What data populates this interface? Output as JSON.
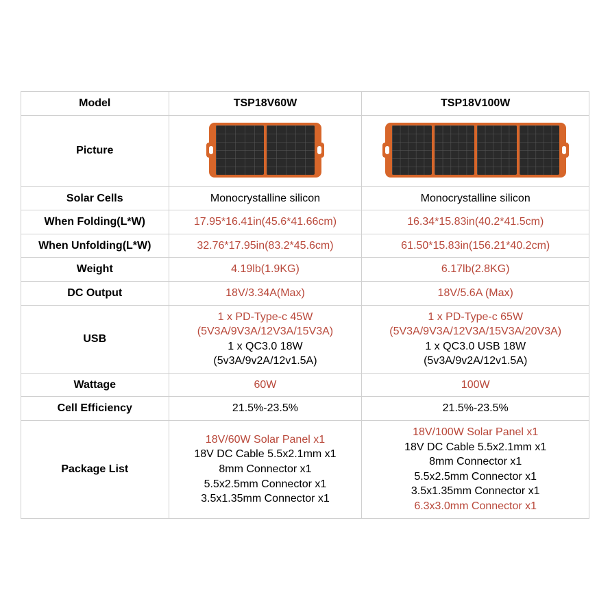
{
  "colors": {
    "highlight": "#b9483a",
    "black": "#000000",
    "border": "#d0d0d0",
    "panel_frame": "#d7662a",
    "panel_cell": "#2a2a2a",
    "background": "#ffffff"
  },
  "header": {
    "model": "Model",
    "col1": "TSP18V60W",
    "col2": "TSP18V100W"
  },
  "rows": {
    "picture": {
      "label": "Picture"
    },
    "solar_cells": {
      "label": "Solar Cells",
      "v1": "Monocrystalline silicon",
      "v2": "Monocrystalline silicon"
    },
    "folding": {
      "label": "When Folding(L*W)",
      "v1": "17.95*16.41in(45.6*41.66cm)",
      "v2": "16.34*15.83in(40.2*41.5cm)"
    },
    "unfolding": {
      "label": "When Unfolding(L*W)",
      "v1": "32.76*17.95in(83.2*45.6cm)",
      "v2": "61.50*15.83in(156.21*40.2cm)"
    },
    "weight": {
      "label": "Weight",
      "v1": "4.19lb(1.9KG)",
      "v2": "6.17lb(2.8KG)"
    },
    "dc_output": {
      "label": "DC Output",
      "v1": "18V/3.34A(Max)",
      "v2": "18V/5.6A (Max)"
    },
    "usb": {
      "label": "USB",
      "v1a": "1 x PD-Type-c 45W",
      "v1b": "(5V3A/9V3A/12V3A/15V3A)",
      "v1c": "1 x QC3.0 18W",
      "v1d": "(5v3A/9v2A/12v1.5A)",
      "v2a": "1 x PD-Type-c 65W",
      "v2b": "(5V3A/9V3A/12V3A/15V3A/20V3A)",
      "v2c": "1 x QC3.0 USB 18W",
      "v2d": "(5v3A/9v2A/12v1.5A)"
    },
    "wattage": {
      "label": "Wattage",
      "v1": "60W",
      "v2": "100W"
    },
    "efficiency": {
      "label": "Cell Efficiency",
      "v1": "21.5%-23.5%",
      "v2": "21.5%-23.5%"
    },
    "package": {
      "label": "Package List",
      "v1a": "18V/60W Solar Panel x1",
      "v1b": "18V DC Cable 5.5x2.1mm x1",
      "v1c": "8mm Connector x1",
      "v1d": "5.5x2.5mm Connector x1",
      "v1e": "3.5x1.35mm Connector x1",
      "v2a": "18V/100W Solar Panel x1",
      "v2b": "18V DC Cable 5.5x2.1mm x1",
      "v2c": "8mm Connector x1",
      "v2d": "5.5x2.5mm Connector x1",
      "v2e": "3.5x1.35mm Connector x1",
      "v2f": "6.3x3.0mm Connector x1"
    }
  },
  "pictures": {
    "model1_cells": 2,
    "model2_cells": 4
  }
}
